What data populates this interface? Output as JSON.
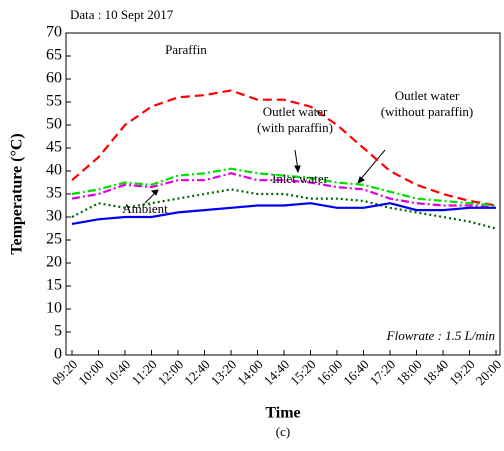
{
  "chart_data": {
    "type": "line",
    "note": "Data : 10 Sept 2017",
    "xlabel": "Time",
    "ylabel": "Temperature (°C)",
    "caption": "(c)",
    "categories": [
      "09:20",
      "10:00",
      "10:40",
      "11:20",
      "12:00",
      "12:40",
      "13:20",
      "14:00",
      "14:40",
      "15:20",
      "16:00",
      "16:40",
      "17:20",
      "18:00",
      "18:40",
      "19:20",
      "20:00"
    ],
    "series": [
      {
        "name": "Paraffin",
        "color": "#ff0000",
        "dash": "9,5",
        "values": [
          38,
          43,
          50,
          54,
          56,
          56.5,
          57.5,
          55.5,
          55.5,
          54,
          50,
          45,
          40,
          37,
          35,
          33.5,
          32.5
        ]
      },
      {
        "name": "Outlet water (with paraffin)",
        "color": "#00e000",
        "dash": "8,3,2,3",
        "values": [
          35,
          36,
          37.5,
          37,
          39,
          39.5,
          40.5,
          39.5,
          39,
          38.5,
          37.5,
          37,
          35.5,
          34,
          33.5,
          33,
          32.5
        ]
      },
      {
        "name": "Outlet water (without paraffin)",
        "color": "#e000e0",
        "dash": "8,3,2,3",
        "values": [
          34,
          35,
          37,
          36.5,
          38,
          38,
          39.5,
          38,
          38,
          37.5,
          36.5,
          36,
          34,
          33,
          32.5,
          32.5,
          32
        ]
      },
      {
        "name": "Ambient",
        "color": "#006400",
        "dash": "2,3",
        "values": [
          30,
          33,
          32,
          33,
          34,
          35,
          36,
          35,
          35,
          34,
          34,
          33.5,
          32,
          31,
          30,
          29,
          27.5
        ]
      },
      {
        "name": "Inlet water",
        "color": "#0000ee",
        "dash": "",
        "values": [
          28.5,
          29.5,
          30,
          30,
          31,
          31.5,
          32,
          32.5,
          32.5,
          33,
          32,
          32,
          33,
          31.5,
          31.5,
          32,
          32
        ]
      }
    ],
    "annotations": [
      {
        "lines": [
          "Paraffin"
        ]
      },
      {
        "lines": [
          "Outlet water",
          "(with paraffin)"
        ]
      },
      {
        "lines": [
          "Outlet water",
          "(without paraffin)"
        ]
      },
      {
        "lines": [
          "Ambient"
        ]
      },
      {
        "lines": [
          "Inlet water"
        ]
      },
      {
        "lines": [
          "Flowrate : 1.5 L/min"
        ]
      }
    ],
    "ylim": [
      0,
      70
    ],
    "yticks": [
      0,
      5,
      10,
      15,
      20,
      25,
      30,
      35,
      40,
      45,
      50,
      55,
      60,
      65,
      70
    ]
  }
}
